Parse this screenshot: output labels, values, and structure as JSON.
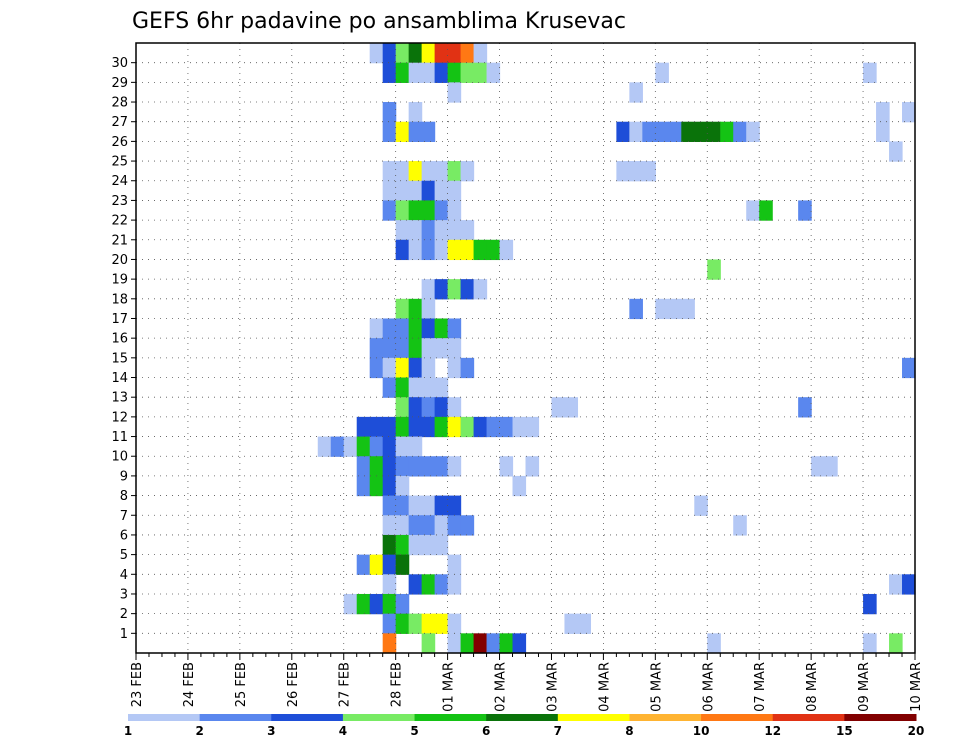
{
  "chart_data": {
    "type": "heatmap",
    "title": "GEFS 6hr padavine po ansamblima Krusevac",
    "x_tick_labels": [
      "23 FEB",
      "24 FEB",
      "25 FEB",
      "26 FEB",
      "27 FEB",
      "28 FEB",
      "01 MAR",
      "02 MAR",
      "03 MAR",
      "04 MAR",
      "05 MAR",
      "06 MAR",
      "07 MAR",
      "08 MAR",
      "09 MAR",
      "10 MAR"
    ],
    "y_tick_labels": [
      "1",
      "2",
      "3",
      "4",
      "5",
      "6",
      "7",
      "8",
      "9",
      "10",
      "11",
      "12",
      "13",
      "14",
      "15",
      "16",
      "17",
      "18",
      "19",
      "20",
      "21",
      "22",
      "23",
      "24",
      "25",
      "26",
      "27",
      "28",
      "29",
      "30"
    ],
    "x_range_steps": [
      0,
      60
    ],
    "steps_per_day": 4,
    "y_range": [
      0,
      30
    ],
    "grid": true,
    "colorbar": {
      "colors": [
        "#b4c8f5",
        "#5a87ee",
        "#1e4ed8",
        "#78eb64",
        "#14c314",
        "#0a730a",
        "#ffff00",
        "#ffb432",
        "#ff7814",
        "#e13214",
        "#820000"
      ],
      "thresholds": [
        1,
        2,
        3,
        4,
        5,
        6,
        7,
        8,
        10,
        12,
        15,
        20
      ],
      "labels": [
        "1",
        "2",
        "3",
        "4",
        "5",
        "6",
        "7",
        "8",
        "10",
        "12",
        "15",
        "20"
      ]
    },
    "cells_format": "[time_step, member, color_index]",
    "cells": [
      [
        18,
        30,
        0
      ],
      [
        19,
        30,
        2
      ],
      [
        20,
        30,
        3
      ],
      [
        21,
        30,
        5
      ],
      [
        22,
        30,
        6
      ],
      [
        23,
        30,
        9
      ],
      [
        24,
        30,
        9
      ],
      [
        25,
        30,
        8
      ],
      [
        26,
        30,
        0
      ],
      [
        19,
        29,
        2
      ],
      [
        20,
        29,
        4
      ],
      [
        21,
        29,
        0
      ],
      [
        22,
        29,
        0
      ],
      [
        23,
        29,
        2
      ],
      [
        24,
        29,
        4
      ],
      [
        25,
        29,
        3
      ],
      [
        26,
        29,
        3
      ],
      [
        27,
        29,
        0
      ],
      [
        40,
        29,
        0
      ],
      [
        56,
        29,
        0
      ],
      [
        24,
        28,
        0
      ],
      [
        38,
        28,
        0
      ],
      [
        19,
        27,
        1
      ],
      [
        21,
        27,
        0
      ],
      [
        57,
        27,
        0
      ],
      [
        59,
        27,
        0
      ],
      [
        19,
        26,
        1
      ],
      [
        20,
        26,
        6
      ],
      [
        21,
        26,
        1
      ],
      [
        22,
        26,
        1
      ],
      [
        37,
        26,
        2
      ],
      [
        38,
        26,
        0
      ],
      [
        39,
        26,
        1
      ],
      [
        40,
        26,
        1
      ],
      [
        41,
        26,
        1
      ],
      [
        42,
        26,
        5
      ],
      [
        43,
        26,
        5
      ],
      [
        44,
        26,
        5
      ],
      [
        45,
        26,
        4
      ],
      [
        46,
        26,
        1
      ],
      [
        47,
        26,
        0
      ],
      [
        57,
        26,
        0
      ],
      [
        58,
        25,
        0
      ],
      [
        19,
        24,
        0
      ],
      [
        20,
        24,
        0
      ],
      [
        21,
        24,
        6
      ],
      [
        22,
        24,
        0
      ],
      [
        23,
        24,
        0
      ],
      [
        24,
        24,
        3
      ],
      [
        25,
        24,
        0
      ],
      [
        37,
        24,
        0
      ],
      [
        38,
        24,
        0
      ],
      [
        39,
        24,
        0
      ],
      [
        19,
        23,
        0
      ],
      [
        20,
        23,
        0
      ],
      [
        21,
        23,
        0
      ],
      [
        22,
        23,
        2
      ],
      [
        23,
        23,
        0
      ],
      [
        24,
        23,
        0
      ],
      [
        19,
        22,
        1
      ],
      [
        20,
        22,
        3
      ],
      [
        21,
        22,
        4
      ],
      [
        22,
        22,
        4
      ],
      [
        23,
        22,
        1
      ],
      [
        24,
        22,
        0
      ],
      [
        47,
        22,
        0
      ],
      [
        48,
        22,
        4
      ],
      [
        51,
        22,
        1
      ],
      [
        20,
        21,
        0
      ],
      [
        21,
        21,
        0
      ],
      [
        22,
        21,
        1
      ],
      [
        23,
        21,
        0
      ],
      [
        24,
        21,
        0
      ],
      [
        25,
        21,
        0
      ],
      [
        20,
        20,
        2
      ],
      [
        21,
        20,
        0
      ],
      [
        22,
        20,
        1
      ],
      [
        23,
        20,
        0
      ],
      [
        24,
        20,
        6
      ],
      [
        25,
        20,
        6
      ],
      [
        26,
        20,
        4
      ],
      [
        27,
        20,
        4
      ],
      [
        28,
        20,
        0
      ],
      [
        44,
        19,
        3
      ],
      [
        22,
        18,
        0
      ],
      [
        23,
        18,
        2
      ],
      [
        24,
        18,
        3
      ],
      [
        25,
        18,
        2
      ],
      [
        26,
        18,
        0
      ],
      [
        20,
        17,
        3
      ],
      [
        21,
        17,
        4
      ],
      [
        22,
        17,
        0
      ],
      [
        38,
        17,
        1
      ],
      [
        40,
        17,
        0
      ],
      [
        41,
        17,
        0
      ],
      [
        42,
        17,
        0
      ],
      [
        18,
        16,
        0
      ],
      [
        19,
        16,
        1
      ],
      [
        20,
        16,
        1
      ],
      [
        21,
        16,
        4
      ],
      [
        22,
        16,
        2
      ],
      [
        23,
        16,
        4
      ],
      [
        24,
        16,
        1
      ],
      [
        18,
        15,
        1
      ],
      [
        19,
        15,
        1
      ],
      [
        20,
        15,
        1
      ],
      [
        21,
        15,
        4
      ],
      [
        22,
        15,
        0
      ],
      [
        23,
        15,
        0
      ],
      [
        24,
        15,
        0
      ],
      [
        18,
        14,
        1
      ],
      [
        19,
        14,
        0
      ],
      [
        20,
        14,
        6
      ],
      [
        21,
        14,
        2
      ],
      [
        22,
        14,
        0
      ],
      [
        24,
        14,
        0
      ],
      [
        25,
        14,
        1
      ],
      [
        59,
        14,
        1
      ],
      [
        19,
        13,
        1
      ],
      [
        20,
        13,
        4
      ],
      [
        21,
        13,
        0
      ],
      [
        22,
        13,
        0
      ],
      [
        23,
        13,
        0
      ],
      [
        20,
        12,
        3
      ],
      [
        21,
        12,
        2
      ],
      [
        22,
        12,
        1
      ],
      [
        23,
        12,
        2
      ],
      [
        24,
        12,
        0
      ],
      [
        32,
        12,
        0
      ],
      [
        33,
        12,
        0
      ],
      [
        51,
        12,
        1
      ],
      [
        17,
        11,
        2
      ],
      [
        18,
        11,
        2
      ],
      [
        19,
        11,
        2
      ],
      [
        20,
        11,
        4
      ],
      [
        21,
        11,
        2
      ],
      [
        22,
        11,
        2
      ],
      [
        23,
        11,
        4
      ],
      [
        24,
        11,
        6
      ],
      [
        25,
        11,
        3
      ],
      [
        26,
        11,
        2
      ],
      [
        27,
        11,
        1
      ],
      [
        28,
        11,
        1
      ],
      [
        29,
        11,
        0
      ],
      [
        30,
        11,
        0
      ],
      [
        14,
        10,
        0
      ],
      [
        15,
        10,
        1
      ],
      [
        16,
        10,
        0
      ],
      [
        17,
        10,
        4
      ],
      [
        18,
        10,
        1
      ],
      [
        19,
        10,
        2
      ],
      [
        20,
        10,
        0
      ],
      [
        21,
        10,
        0
      ],
      [
        17,
        9,
        1
      ],
      [
        18,
        9,
        4
      ],
      [
        19,
        9,
        2
      ],
      [
        20,
        9,
        1
      ],
      [
        21,
        9,
        1
      ],
      [
        22,
        9,
        1
      ],
      [
        23,
        9,
        1
      ],
      [
        24,
        9,
        0
      ],
      [
        28,
        9,
        0
      ],
      [
        30,
        9,
        0
      ],
      [
        52,
        9,
        0
      ],
      [
        53,
        9,
        0
      ],
      [
        17,
        8,
        1
      ],
      [
        18,
        8,
        4
      ],
      [
        19,
        8,
        2
      ],
      [
        20,
        8,
        0
      ],
      [
        29,
        8,
        0
      ],
      [
        19,
        7,
        1
      ],
      [
        20,
        7,
        1
      ],
      [
        21,
        7,
        0
      ],
      [
        22,
        7,
        0
      ],
      [
        23,
        7,
        2
      ],
      [
        24,
        7,
        2
      ],
      [
        43,
        7,
        0
      ],
      [
        19,
        6,
        0
      ],
      [
        20,
        6,
        0
      ],
      [
        21,
        6,
        1
      ],
      [
        22,
        6,
        1
      ],
      [
        23,
        6,
        0
      ],
      [
        24,
        6,
        1
      ],
      [
        25,
        6,
        1
      ],
      [
        46,
        6,
        0
      ],
      [
        19,
        5,
        5
      ],
      [
        20,
        5,
        4
      ],
      [
        21,
        5,
        0
      ],
      [
        22,
        5,
        0
      ],
      [
        23,
        5,
        0
      ],
      [
        17,
        4,
        1
      ],
      [
        18,
        4,
        6
      ],
      [
        19,
        4,
        2
      ],
      [
        20,
        4,
        5
      ],
      [
        24,
        4,
        0
      ],
      [
        19,
        3,
        0
      ],
      [
        21,
        3,
        2
      ],
      [
        22,
        3,
        4
      ],
      [
        23,
        3,
        1
      ],
      [
        24,
        3,
        0
      ],
      [
        58,
        3,
        0
      ],
      [
        59,
        3,
        2
      ],
      [
        16,
        2,
        0
      ],
      [
        17,
        2,
        4
      ],
      [
        18,
        2,
        2
      ],
      [
        19,
        2,
        4
      ],
      [
        20,
        2,
        1
      ],
      [
        56,
        2,
        2
      ],
      [
        19,
        1,
        1
      ],
      [
        20,
        1,
        4
      ],
      [
        21,
        1,
        3
      ],
      [
        22,
        1,
        6
      ],
      [
        23,
        1,
        6
      ],
      [
        24,
        1,
        0
      ],
      [
        33,
        1,
        0
      ],
      [
        34,
        1,
        0
      ],
      [
        19,
        0,
        8
      ],
      [
        22,
        0,
        3
      ],
      [
        24,
        0,
        0
      ],
      [
        25,
        0,
        4
      ],
      [
        26,
        0,
        10
      ],
      [
        27,
        0,
        1
      ],
      [
        28,
        0,
        4
      ],
      [
        29,
        0,
        2
      ],
      [
        44,
        0,
        0
      ],
      [
        56,
        0,
        0
      ],
      [
        58,
        0,
        3
      ]
    ]
  }
}
